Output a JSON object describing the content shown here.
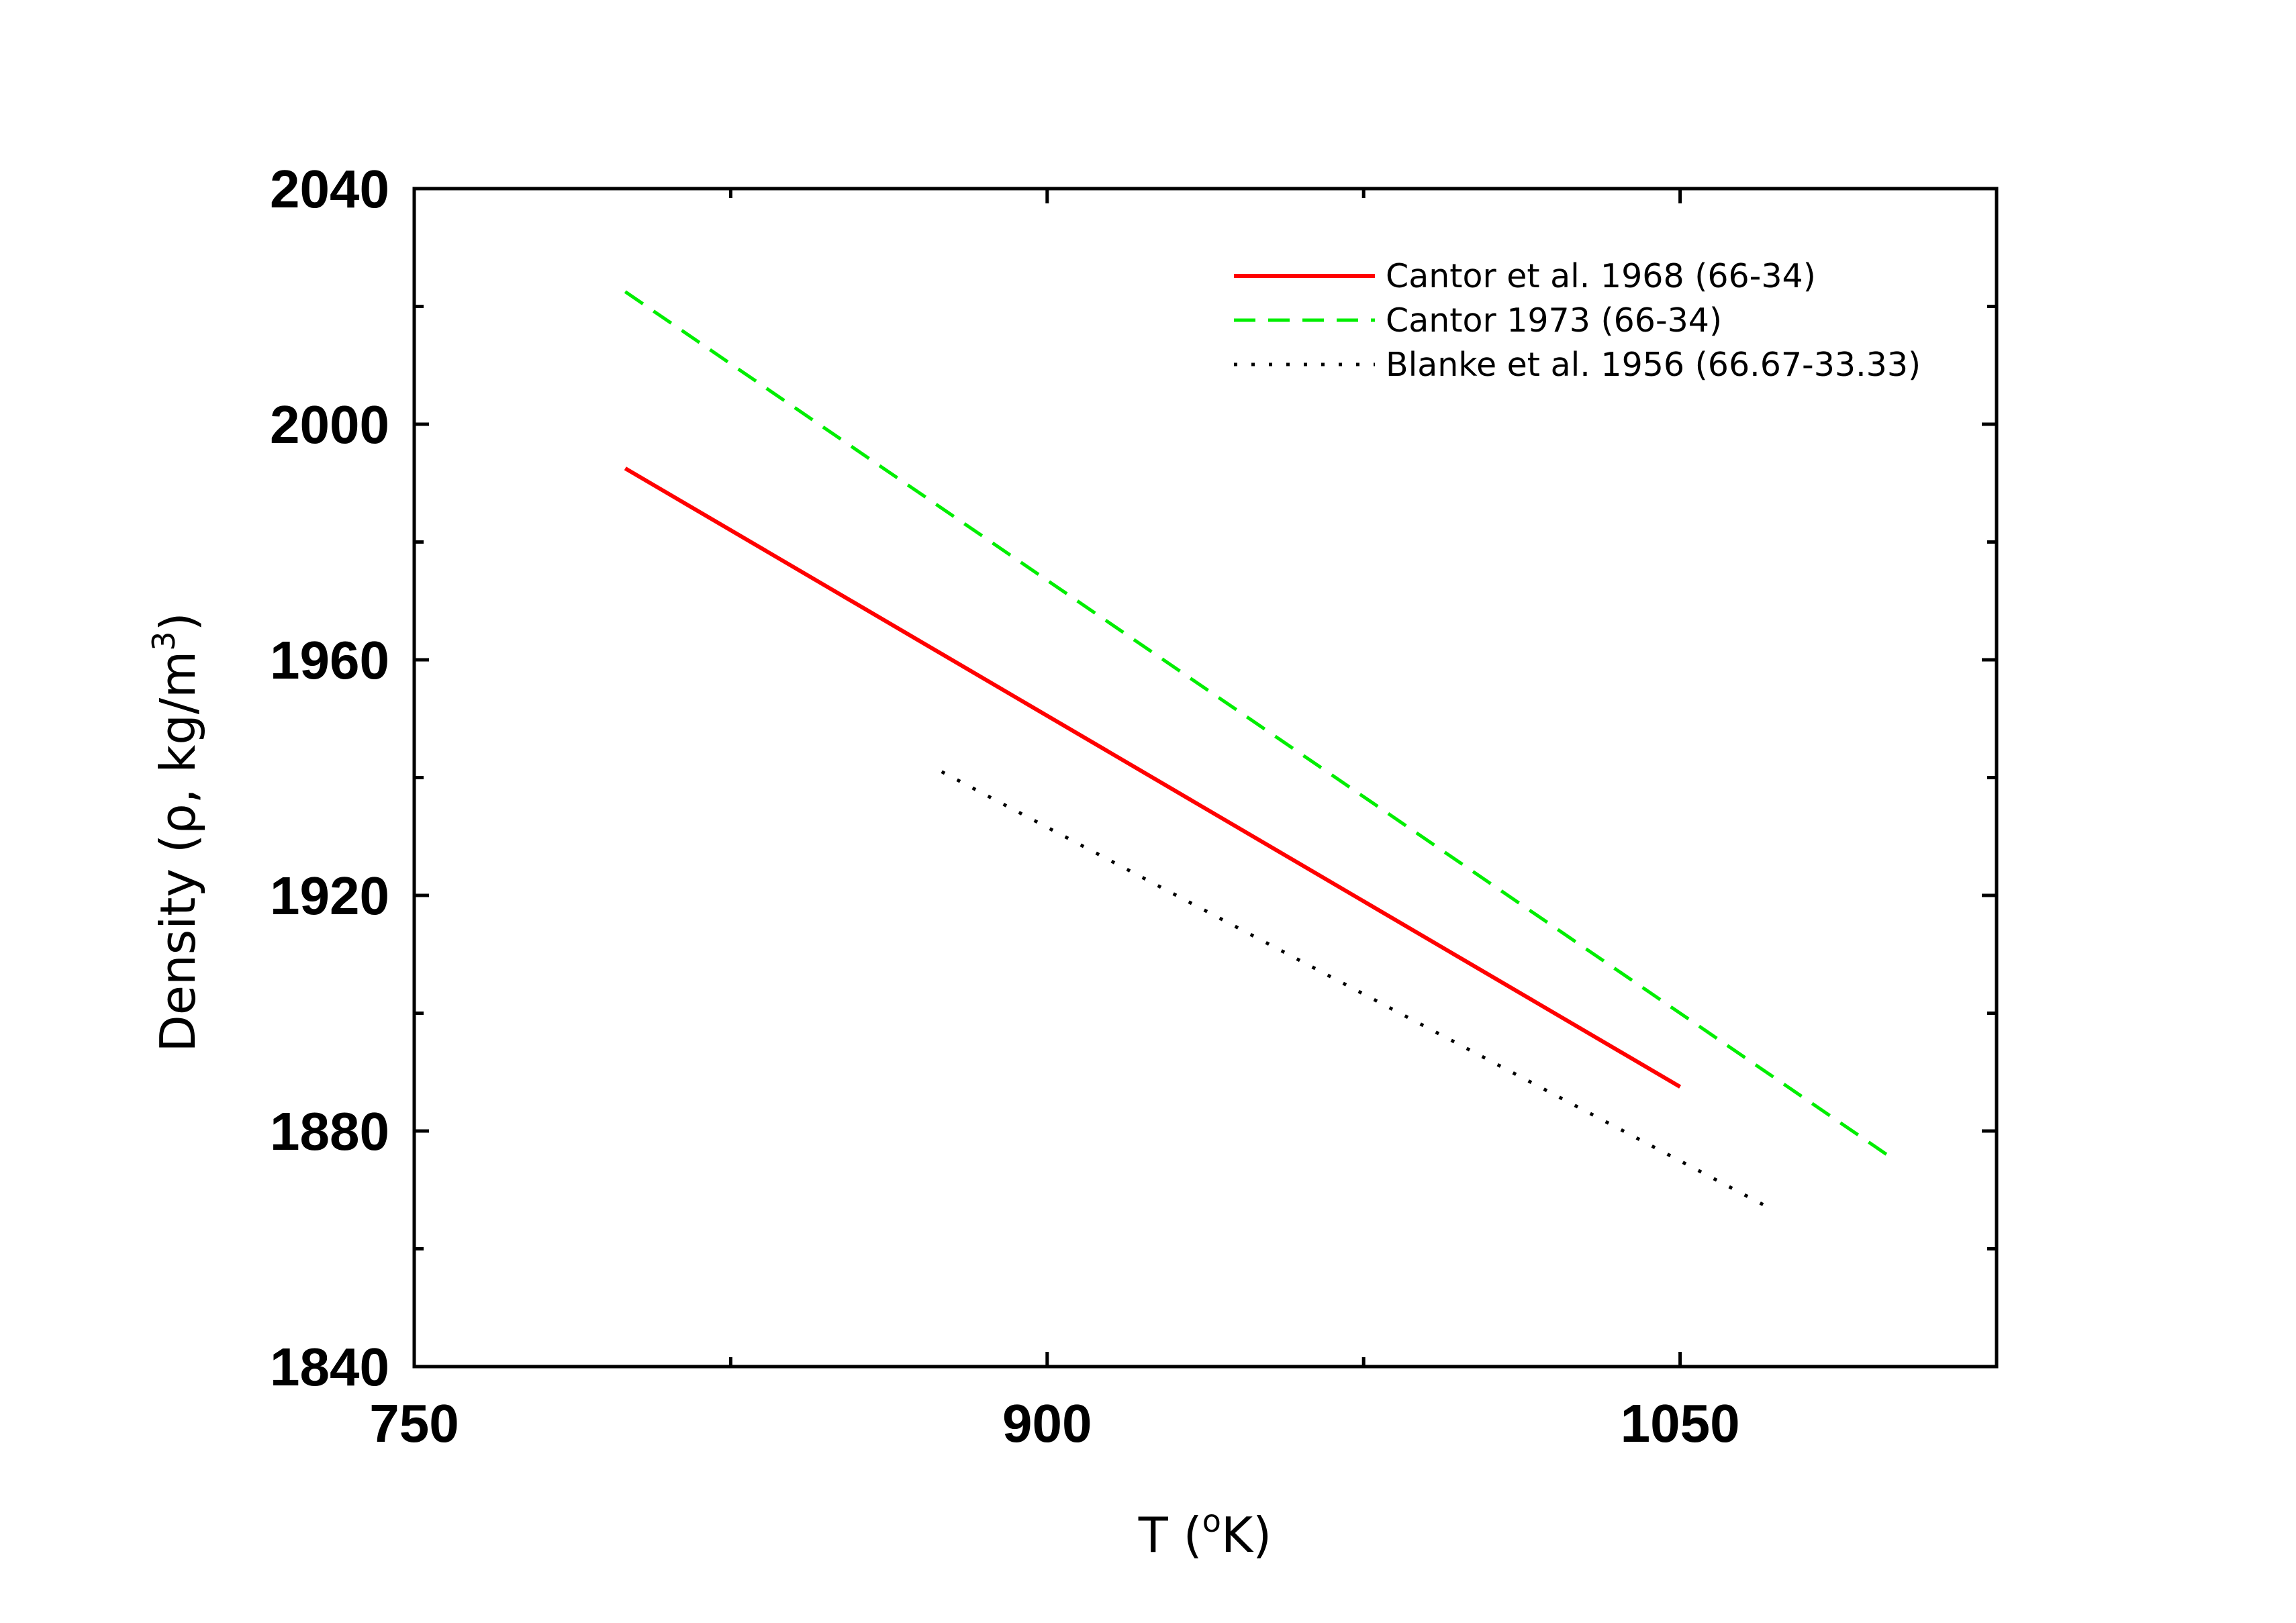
{
  "chart_data": {
    "type": "line",
    "xlabel": "T (°K)",
    "xlabel_parts": {
      "main": "T (",
      "sup": "o",
      "tail": "K)"
    },
    "ylabel": "Density (ρ, kg/m³)",
    "ylabel_parts": {
      "main": "Density (ρ, kg/m",
      "sup": "3",
      "tail": ")"
    },
    "xlim": [
      750,
      1125
    ],
    "ylim": [
      1840,
      2040
    ],
    "xticks": [
      750,
      900,
      1050
    ],
    "xticks_minor": [
      825,
      975
    ],
    "yticks": [
      1840,
      1880,
      1920,
      1960,
      2000,
      2040
    ],
    "yticks_minor": [
      1860,
      1900,
      1940,
      1980,
      2020
    ],
    "grid": false,
    "legend_position": "top-right",
    "series": [
      {
        "name": "Cantor et al. 1968 (66-34)",
        "color": "#ff0000",
        "style": "solid",
        "x": [
          800,
          1050
        ],
        "y": [
          1992.5,
          1887.5
        ]
      },
      {
        "name": "Cantor 1973 (66-34)",
        "color": "#00ee00",
        "style": "dashed",
        "x": [
          800,
          1100
        ],
        "y": [
          2022.5,
          1875.5
        ]
      },
      {
        "name": "Blanke et al. 1956 (66.67-33.33)",
        "color": "#000000",
        "style": "dotted",
        "x": [
          875,
          1071
        ],
        "y": [
          1941,
          1867
        ]
      }
    ]
  }
}
